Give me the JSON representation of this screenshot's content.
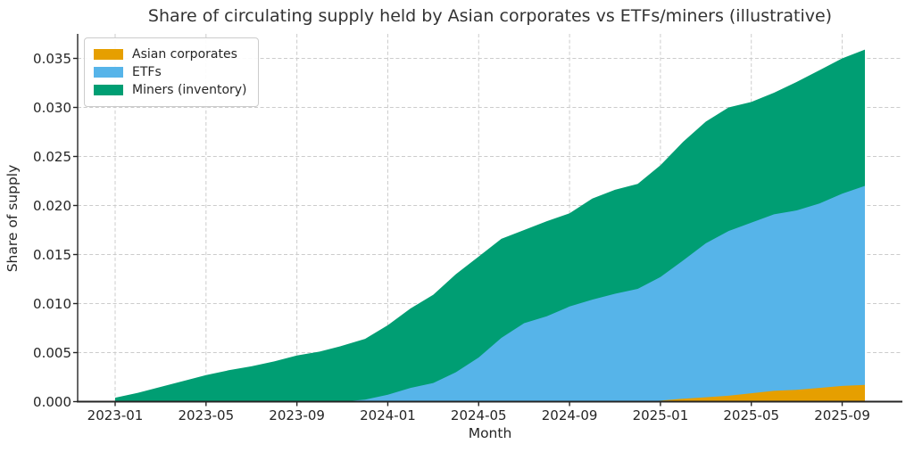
{
  "chart_data": {
    "type": "area",
    "stacked": true,
    "title": "Share of circulating supply held by Asian corporates vs ETFs/miners (illustrative)",
    "xlabel": "Month",
    "ylabel": "Share of supply",
    "ylim": [
      0,
      0.0375
    ],
    "grid": true,
    "grid_style": "dashed",
    "legend_position": "upper-left",
    "x_tick_labels": [
      "2023-01",
      "2023-05",
      "2023-09",
      "2024-01",
      "2024-05",
      "2024-09",
      "2025-01",
      "2025-05",
      "2025-09"
    ],
    "y_tick_labels": [
      "0.000",
      "0.005",
      "0.010",
      "0.015",
      "0.020",
      "0.025",
      "0.030",
      "0.035"
    ],
    "categories": [
      "2023-01",
      "2023-02",
      "2023-03",
      "2023-04",
      "2023-05",
      "2023-06",
      "2023-07",
      "2023-08",
      "2023-09",
      "2023-10",
      "2023-11",
      "2023-12",
      "2024-01",
      "2024-02",
      "2024-03",
      "2024-04",
      "2024-05",
      "2024-06",
      "2024-07",
      "2024-08",
      "2024-09",
      "2024-10",
      "2024-11",
      "2024-12",
      "2025-01",
      "2025-02",
      "2025-03",
      "2025-04",
      "2025-05",
      "2025-06",
      "2025-07",
      "2025-08",
      "2025-09",
      "2025-10"
    ],
    "series": [
      {
        "name": "Asian corporates",
        "color": "#E69F00",
        "values": [
          0,
          0,
          0,
          0,
          0,
          0,
          0,
          0,
          0,
          0,
          0,
          0,
          0,
          0,
          0,
          0,
          0,
          0,
          0,
          0,
          0,
          0,
          0,
          0,
          0.0001,
          0.0003,
          0.00045,
          0.0006,
          0.00085,
          0.0011,
          0.0012,
          0.0014,
          0.0016,
          0.0017
        ]
      },
      {
        "name": "ETFs",
        "color": "#56B4E9",
        "values": [
          0,
          0,
          0,
          0,
          0,
          0,
          0,
          0,
          0,
          0,
          0,
          0.0002,
          0.0007,
          0.0014,
          0.0019,
          0.003,
          0.0045,
          0.0065,
          0.008,
          0.0087,
          0.0097,
          0.0104,
          0.011,
          0.0115,
          0.0126,
          0.0141,
          0.0157,
          0.0168,
          0.0174,
          0.018,
          0.0183,
          0.0188,
          0.0196,
          0.0203
        ]
      },
      {
        "name": "Miners (inventory)",
        "color": "#009E73",
        "values": [
          0.0004,
          0.0009,
          0.0015,
          0.0021,
          0.0027,
          0.0032,
          0.0036,
          0.0041,
          0.0047,
          0.0051,
          0.0057,
          0.0062,
          0.0071,
          0.0081,
          0.009,
          0.01,
          0.0103,
          0.0101,
          0.0095,
          0.0097,
          0.0095,
          0.0103,
          0.0106,
          0.0107,
          0.0114,
          0.0121,
          0.0124,
          0.0126,
          0.0123,
          0.0124,
          0.0131,
          0.0136,
          0.0138,
          0.0139
        ]
      }
    ],
    "axis_colors": {
      "spine": "#262626",
      "grid": "#cccccc",
      "text": "#262626"
    }
  }
}
